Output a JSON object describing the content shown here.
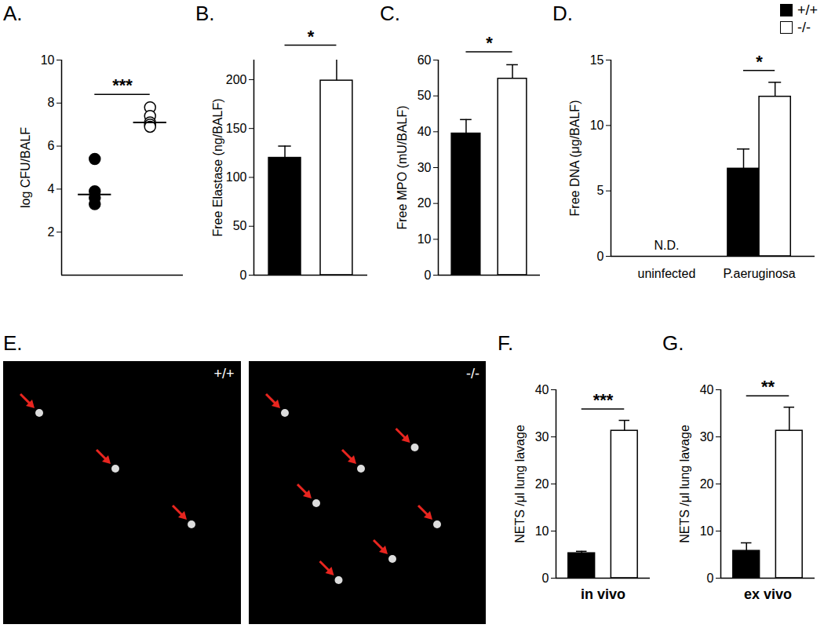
{
  "chart_data": [
    {
      "type": "scatter",
      "title": "A.",
      "y_label": "log CFU/BALF",
      "ylim": [
        0,
        10
      ],
      "yticks": [
        2,
        4,
        6,
        8,
        10
      ],
      "significance": "***",
      "series": [
        {
          "name": "+/+",
          "color": "#000000",
          "marker": "circle",
          "values": [
            5.4,
            3.9,
            3.6,
            3.3
          ],
          "median": 3.75
        },
        {
          "name": "-/-",
          "color": "#ffffff",
          "marker": "circle",
          "values": [
            7.8,
            7.4,
            7.1,
            7.0,
            6.9
          ],
          "median": 7.1
        }
      ]
    },
    {
      "type": "bar",
      "title": "B.",
      "y_label": "Free Elastase (ng/BALF)",
      "ylim": [
        0,
        220
      ],
      "yticks": [
        0,
        50,
        100,
        150,
        200
      ],
      "significance": "*",
      "series": [
        {
          "name": "+/+",
          "color": "#000000",
          "values": [
            120
          ],
          "errors": [
            12
          ]
        },
        {
          "name": "-/-",
          "color": "#ffffff",
          "values": [
            199
          ],
          "errors": [
            23
          ]
        }
      ]
    },
    {
      "type": "bar",
      "title": "C.",
      "y_label": "Free MPO (mU/BALF)",
      "ylim": [
        0,
        60
      ],
      "yticks": [
        0,
        10,
        20,
        30,
        40,
        50,
        60
      ],
      "significance": "*",
      "series": [
        {
          "name": "+/+",
          "color": "#000000",
          "values": [
            39.5
          ],
          "errors": [
            3.9
          ]
        },
        {
          "name": "-/-",
          "color": "#ffffff",
          "values": [
            54.8
          ],
          "errors": [
            3.9
          ]
        }
      ]
    },
    {
      "type": "bar",
      "title": "D.",
      "y_label": "Free DNA (μg/BALF)",
      "ylim": [
        0,
        15
      ],
      "yticks": [
        0,
        5,
        10,
        15
      ],
      "significance": "*",
      "categories": [
        "uninfected",
        "P.aeruginosa"
      ],
      "annotation": "N.D.",
      "legend": "top-right",
      "series": [
        {
          "name": "+/+",
          "color": "#000000",
          "values": [
            null,
            6.7
          ],
          "errors": [
            null,
            1.5
          ]
        },
        {
          "name": "-/-",
          "color": "#ffffff",
          "values": [
            null,
            12.2
          ],
          "errors": [
            null,
            1.1
          ]
        }
      ]
    },
    {
      "type": "image",
      "title": "E.",
      "panels": [
        "+/+",
        "-/-"
      ]
    },
    {
      "type": "bar",
      "title": "F.",
      "y_label": "NETS /μl lung lavage",
      "x_label": "in vivo",
      "ylim": [
        0,
        40
      ],
      "yticks": [
        0,
        10,
        20,
        30,
        40
      ],
      "significance": "***",
      "series": [
        {
          "name": "+/+",
          "color": "#000000",
          "values": [
            5.3
          ],
          "errors": [
            0.4
          ]
        },
        {
          "name": "-/-",
          "color": "#ffffff",
          "values": [
            31.3
          ],
          "errors": [
            2.2
          ]
        }
      ]
    },
    {
      "type": "bar",
      "title": "G.",
      "y_label": "NETS /μl lung lavage",
      "x_label": "ex vivo",
      "ylim": [
        0,
        40
      ],
      "yticks": [
        0,
        10,
        20,
        30,
        40
      ],
      "significance": "**",
      "series": [
        {
          "name": "+/+",
          "color": "#000000",
          "values": [
            5.8
          ],
          "errors": [
            1.7
          ]
        },
        {
          "name": "-/-",
          "color": "#ffffff",
          "values": [
            31.3
          ],
          "errors": [
            5.0
          ]
        }
      ]
    }
  ]
}
